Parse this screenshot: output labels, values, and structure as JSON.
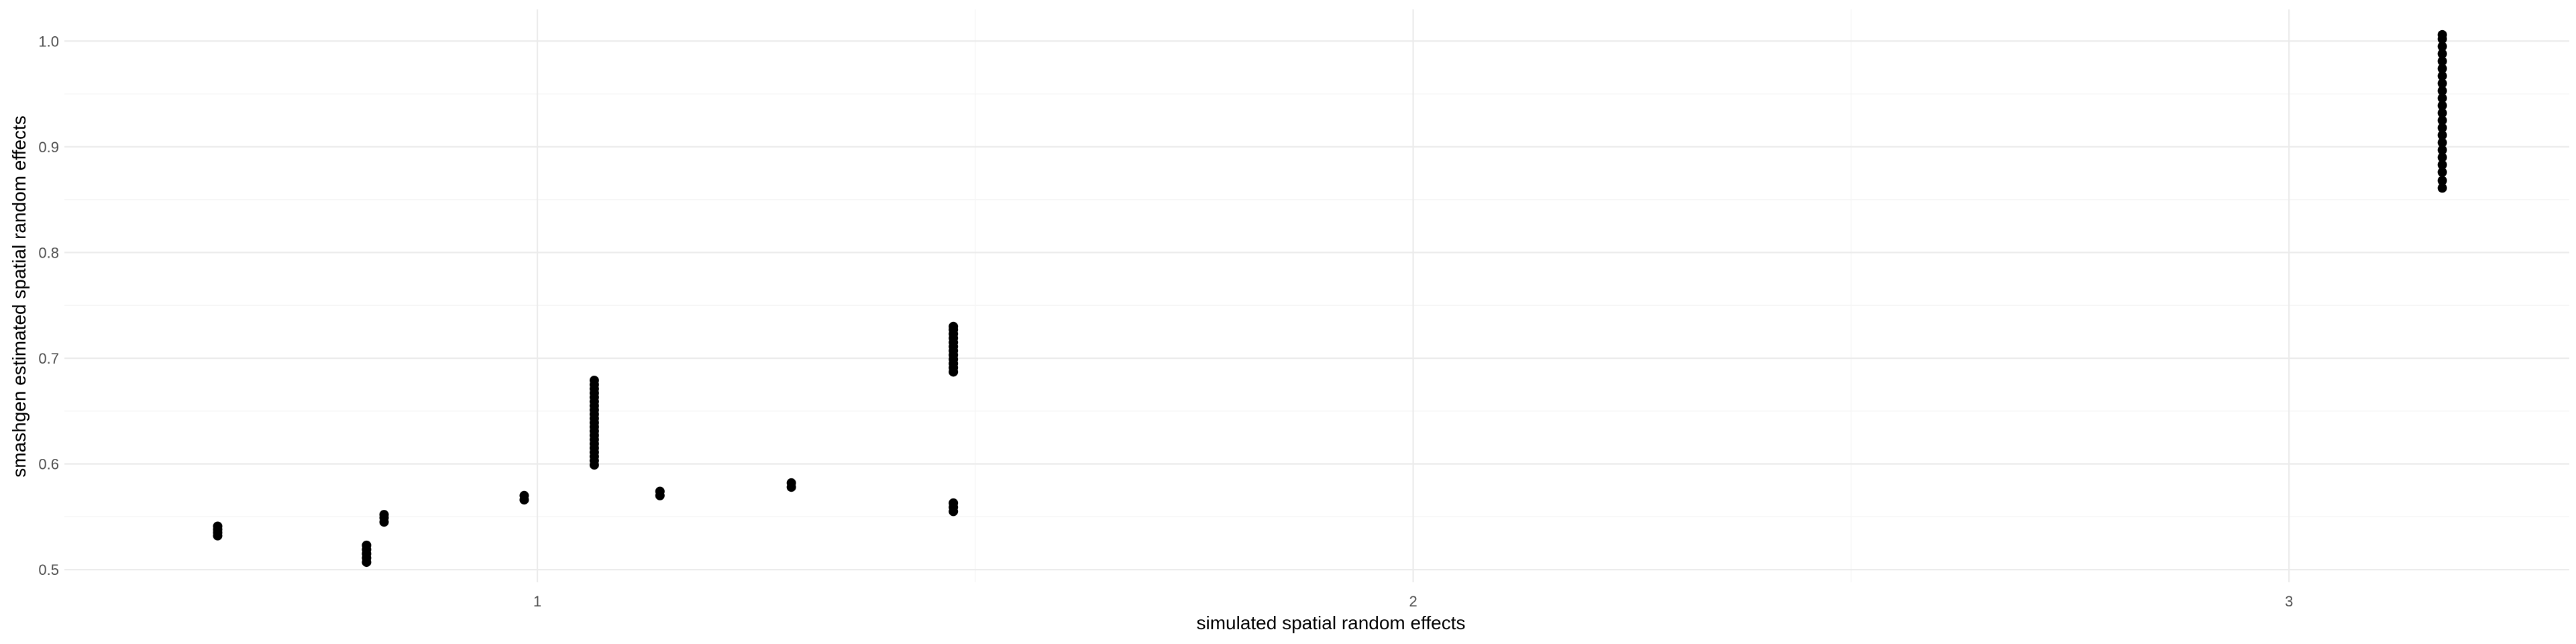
{
  "chart_data": {
    "type": "scatter",
    "title": "",
    "xlabel": "simulated spatial random effects",
    "ylabel": "smashgen estimated spatial random effects",
    "xlim": [
      0.46,
      3.32
    ],
    "ylim": [
      0.488,
      1.03
    ],
    "x_ticks": [
      {
        "value": 1,
        "label": "1"
      },
      {
        "value": 2,
        "label": "2"
      },
      {
        "value": 3,
        "label": "3"
      }
    ],
    "x_minor_ticks": [
      1.5,
      2.5
    ],
    "y_ticks": [
      {
        "value": 0.5,
        "label": "0.5"
      },
      {
        "value": 0.6,
        "label": "0.6"
      },
      {
        "value": 0.7,
        "label": "0.7"
      },
      {
        "value": 0.8,
        "label": "0.8"
      },
      {
        "value": 0.9,
        "label": "0.9"
      },
      {
        "value": 1.0,
        "label": "1.0"
      }
    ],
    "y_minor_ticks": [
      0.55,
      0.65,
      0.75,
      0.85,
      0.95
    ],
    "grid": true,
    "point_color": "#000000",
    "series": [
      {
        "points": [
          {
            "x": 0.635,
            "y": 0.532
          },
          {
            "x": 0.635,
            "y": 0.535
          },
          {
            "x": 0.635,
            "y": 0.538
          },
          {
            "x": 0.635,
            "y": 0.541
          },
          {
            "x": 0.805,
            "y": 0.507
          },
          {
            "x": 0.805,
            "y": 0.511
          },
          {
            "x": 0.805,
            "y": 0.515
          },
          {
            "x": 0.805,
            "y": 0.519
          },
          {
            "x": 0.805,
            "y": 0.523
          },
          {
            "x": 0.825,
            "y": 0.545
          },
          {
            "x": 0.825,
            "y": 0.549
          },
          {
            "x": 0.825,
            "y": 0.552
          },
          {
            "x": 0.985,
            "y": 0.566
          },
          {
            "x": 0.985,
            "y": 0.57
          },
          {
            "x": 1.065,
            "y": 0.599
          },
          {
            "x": 1.065,
            "y": 0.603
          },
          {
            "x": 1.065,
            "y": 0.607
          },
          {
            "x": 1.065,
            "y": 0.611
          },
          {
            "x": 1.065,
            "y": 0.615
          },
          {
            "x": 1.065,
            "y": 0.619
          },
          {
            "x": 1.065,
            "y": 0.623
          },
          {
            "x": 1.065,
            "y": 0.627
          },
          {
            "x": 1.065,
            "y": 0.631
          },
          {
            "x": 1.065,
            "y": 0.635
          },
          {
            "x": 1.065,
            "y": 0.639
          },
          {
            "x": 1.065,
            "y": 0.643
          },
          {
            "x": 1.065,
            "y": 0.647
          },
          {
            "x": 1.065,
            "y": 0.651
          },
          {
            "x": 1.065,
            "y": 0.655
          },
          {
            "x": 1.065,
            "y": 0.659
          },
          {
            "x": 1.065,
            "y": 0.663
          },
          {
            "x": 1.065,
            "y": 0.667
          },
          {
            "x": 1.065,
            "y": 0.671
          },
          {
            "x": 1.065,
            "y": 0.675
          },
          {
            "x": 1.065,
            "y": 0.679
          },
          {
            "x": 1.14,
            "y": 0.57
          },
          {
            "x": 1.14,
            "y": 0.574
          },
          {
            "x": 1.29,
            "y": 0.578
          },
          {
            "x": 1.29,
            "y": 0.582
          },
          {
            "x": 1.475,
            "y": 0.555
          },
          {
            "x": 1.475,
            "y": 0.559
          },
          {
            "x": 1.475,
            "y": 0.563
          },
          {
            "x": 1.475,
            "y": 0.687
          },
          {
            "x": 1.475,
            "y": 0.691
          },
          {
            "x": 1.475,
            "y": 0.695
          },
          {
            "x": 1.475,
            "y": 0.699
          },
          {
            "x": 1.475,
            "y": 0.703
          },
          {
            "x": 1.475,
            "y": 0.707
          },
          {
            "x": 1.475,
            "y": 0.711
          },
          {
            "x": 1.475,
            "y": 0.715
          },
          {
            "x": 1.475,
            "y": 0.719
          },
          {
            "x": 1.475,
            "y": 0.723
          },
          {
            "x": 1.475,
            "y": 0.727
          },
          {
            "x": 1.475,
            "y": 0.73
          },
          {
            "x": 3.175,
            "y": 0.861
          },
          {
            "x": 3.175,
            "y": 0.868
          },
          {
            "x": 3.175,
            "y": 0.876
          },
          {
            "x": 3.175,
            "y": 0.883
          },
          {
            "x": 3.175,
            "y": 0.89
          },
          {
            "x": 3.175,
            "y": 0.897
          },
          {
            "x": 3.175,
            "y": 0.904
          },
          {
            "x": 3.175,
            "y": 0.911
          },
          {
            "x": 3.175,
            "y": 0.918
          },
          {
            "x": 3.175,
            "y": 0.925
          },
          {
            "x": 3.175,
            "y": 0.932
          },
          {
            "x": 3.175,
            "y": 0.939
          },
          {
            "x": 3.175,
            "y": 0.946
          },
          {
            "x": 3.175,
            "y": 0.953
          },
          {
            "x": 3.175,
            "y": 0.96
          },
          {
            "x": 3.175,
            "y": 0.967
          },
          {
            "x": 3.175,
            "y": 0.974
          },
          {
            "x": 3.175,
            "y": 0.981
          },
          {
            "x": 3.175,
            "y": 0.988
          },
          {
            "x": 3.175,
            "y": 0.995
          },
          {
            "x": 3.175,
            "y": 1.002
          },
          {
            "x": 3.175,
            "y": 1.006
          }
        ]
      }
    ]
  }
}
